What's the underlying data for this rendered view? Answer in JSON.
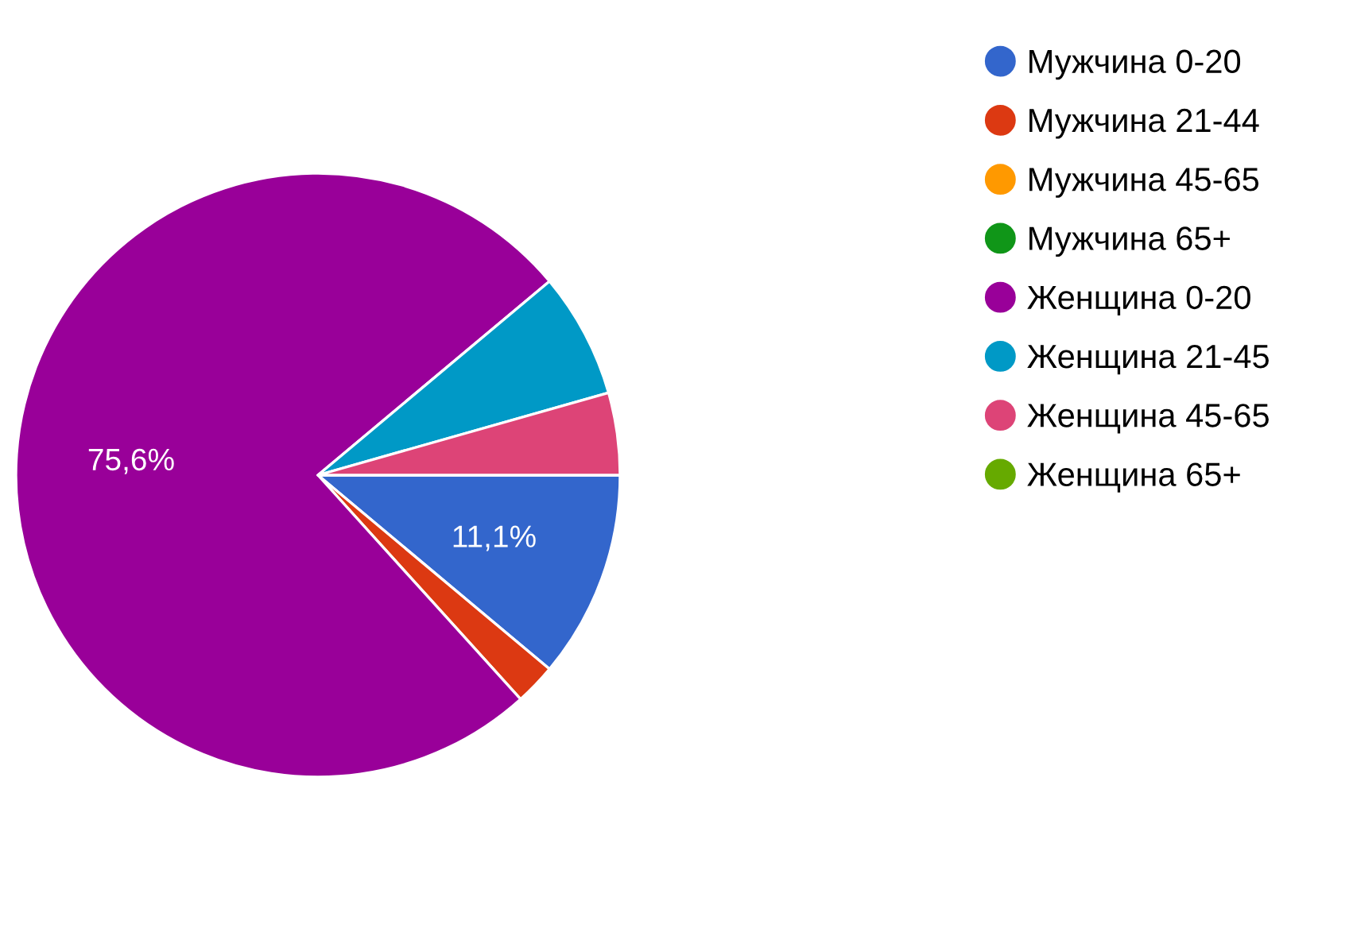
{
  "chart_data": {
    "type": "pie",
    "categories": [
      "Мужчина 0-20",
      "Мужчина 21-44",
      "Мужчина 45-65",
      "Мужчина 65+",
      "Женщина 0-20",
      "Женщина 21-45",
      "Женщина 45-65",
      "Женщина 65+"
    ],
    "values": [
      11.1,
      2.2,
      0,
      0,
      75.6,
      6.7,
      4.4,
      0
    ],
    "colors": [
      "#3366cc",
      "#dc3912",
      "#ff9900",
      "#109618",
      "#990099",
      "#0099c6",
      "#dd4477",
      "#66aa00"
    ],
    "value_labels": [
      "11,1%",
      null,
      null,
      null,
      "75,6%",
      null,
      null,
      null
    ],
    "legend": "right"
  }
}
